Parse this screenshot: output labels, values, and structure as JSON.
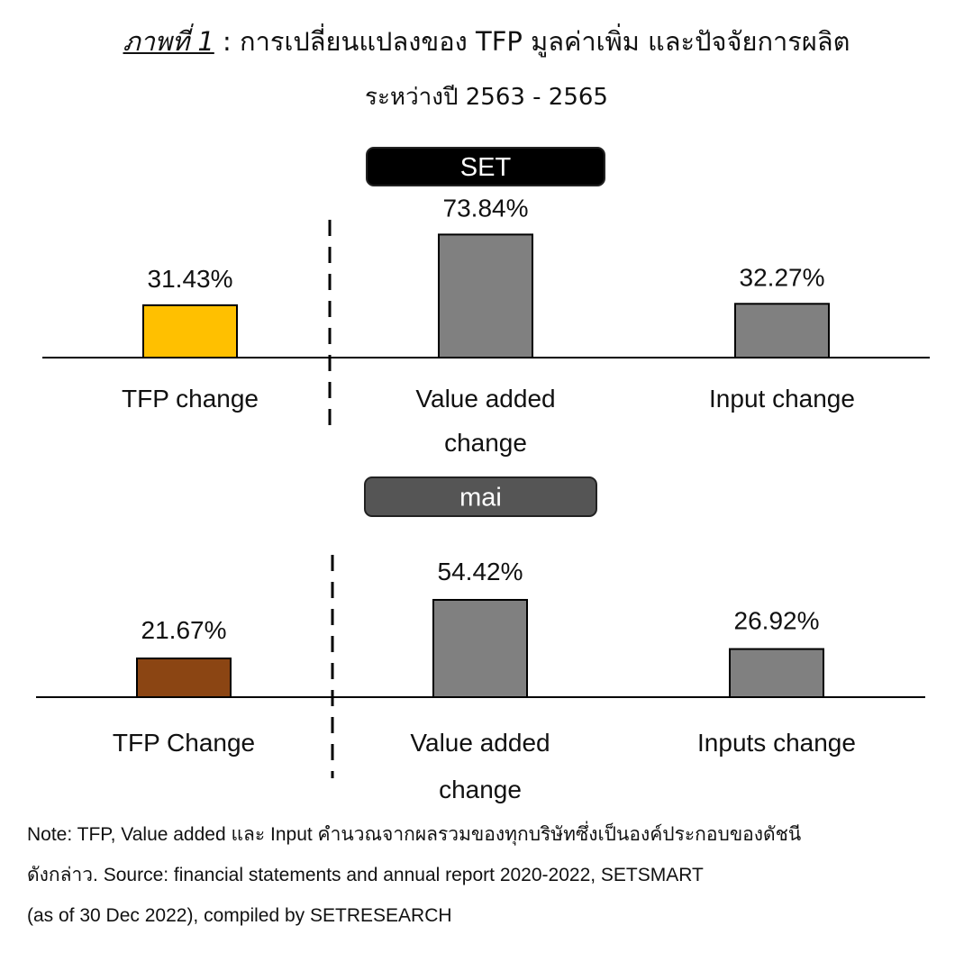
{
  "title": {
    "figure_label": "ภาพที่ 1",
    "line1_rest": " : การเปลี่ยนแปลงของ TFP  มูลค่าเพิ่ม และปัจจัยการผลิต",
    "line2": "ระหว่างปี 2563 - 2565"
  },
  "chart_data": [
    {
      "type": "bar",
      "panel_label": "SET",
      "categories": [
        "TFP change",
        "Value added change",
        "Input change"
      ],
      "category_lines": [
        [
          "TFP change"
        ],
        [
          "Value added",
          "change"
        ],
        [
          "Input change"
        ]
      ],
      "values": [
        31.43,
        73.84,
        32.27
      ],
      "data_labels": [
        "31.43%",
        "73.84%",
        "32.27%"
      ],
      "colors": [
        "#FFC000",
        "#808080",
        "#808080"
      ],
      "ylim": [
        0,
        100
      ],
      "grid": false,
      "panel_label_color": "#000000"
    },
    {
      "type": "bar",
      "panel_label": "mai",
      "categories": [
        "TFP Change",
        "Value added change",
        "Inputs change"
      ],
      "category_lines": [
        [
          "TFP Change"
        ],
        [
          "Value added",
          "change"
        ],
        [
          "Inputs change"
        ]
      ],
      "values": [
        21.67,
        54.42,
        26.92
      ],
      "data_labels": [
        "21.67%",
        "54.42%",
        "26.92%"
      ],
      "colors": [
        "#8B4513",
        "#808080",
        "#808080"
      ],
      "ylim": [
        0,
        100
      ],
      "grid": false,
      "panel_label_color": "#555555"
    }
  ],
  "note": {
    "line1": "Note: TFP, Value added และ Input คำนวณจากผลรวมของทุกบริษัทซึ่งเป็นองค์ประกอบของดัชนี",
    "line2": "ดังกล่าว. Source: financial statements and annual report 2020-2022, SETSMART",
    "line3": "(as of 30 Dec 2022), compiled by SETRESEARCH"
  }
}
